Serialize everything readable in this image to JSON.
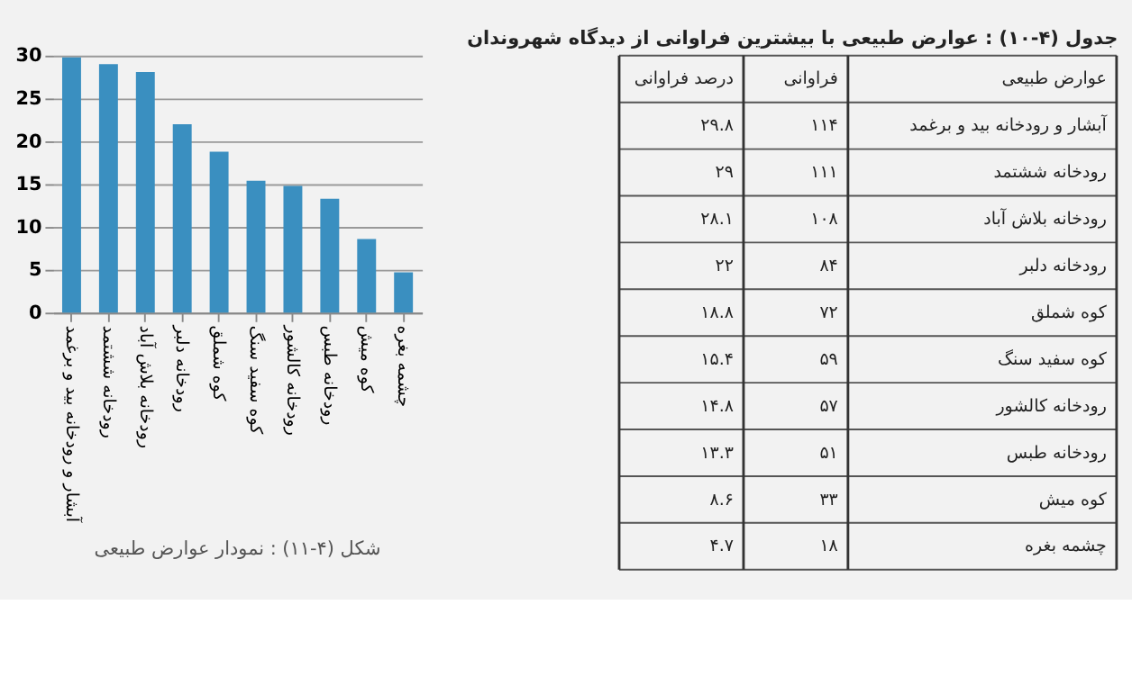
{
  "chart_data": [
    {
      "type": "bar",
      "title": "شکل (۴-۱۱) : نمودار عوارض طبیعی",
      "categories": [
        "آبشار و رودخانه بید و برغمد",
        "رودخانه ششتمد",
        "رودخانه بلاش آباد",
        "رودخانه دلبر",
        "کوه شملق",
        "کوه سفید سنگ",
        "رودخانه کالشور",
        "رودخانه طبس",
        "کوه میش",
        "چشمه بغره"
      ],
      "values": [
        29.8,
        29,
        28.1,
        22,
        18.8,
        15.4,
        14.8,
        13.3,
        8.6,
        4.7
      ],
      "color": "#3a8fc0",
      "ylim": [
        0,
        30
      ],
      "yticks": [
        0,
        5,
        10,
        15,
        20,
        25,
        30
      ],
      "grid": "y"
    },
    {
      "type": "other",
      "title": "جدول (۴-۱۰) : عوارض طبیعی با بیشترین فراوانی از دیدگاه شهروندان",
      "annotations": [
        "عوارض طبیعی",
        "فراوانی",
        "درصد فراوانی",
        "آبشار و رودخانه بید و برغمد",
        "۱۱۴",
        "۲۹.۸",
        "رودخانه ششتمد",
        "۱۱۱",
        "۲۹",
        "رودخانه بلاش آباد",
        "۱۰۸",
        "۲۸.۱",
        "رودخانه دلبر",
        "۸۴",
        "۲۲",
        "کوه شملق",
        "۷۲",
        "۱۸.۸",
        "کوه سفید سنگ",
        "۵۹",
        "۱۵.۴",
        "رودخانه کالشور",
        "۵۷",
        "۱۴.۸",
        "رودخانه طبس",
        "۵۱",
        "۱۳.۳",
        "کوه میش",
        "۳۳",
        "۸.۶",
        "چشمه بغره",
        "۱۸",
        "۴.۷"
      ]
    }
  ]
}
